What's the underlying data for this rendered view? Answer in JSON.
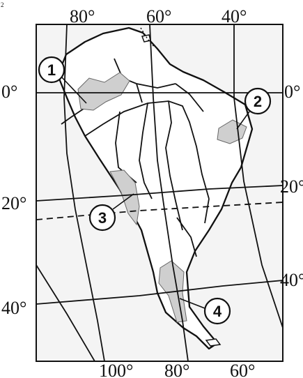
{
  "map": {
    "type": "regional-map",
    "colors": {
      "background": "#f4f4f4",
      "land": "#ffffff",
      "outline": "#111111",
      "shaded_region": "#cfcfcf"
    },
    "corner_mark": "2",
    "top_longitudes": [
      "80°",
      "60°",
      "40°"
    ],
    "bottom_longitudes": [
      "100°",
      "80°",
      "60°"
    ],
    "left_latitudes": [
      "0°",
      "20°",
      "40°"
    ],
    "right_latitudes": [
      "0°",
      "20°",
      "40°"
    ],
    "regions": [
      {
        "label": "1"
      },
      {
        "label": "2"
      },
      {
        "label": "3"
      },
      {
        "label": "4"
      }
    ]
  }
}
